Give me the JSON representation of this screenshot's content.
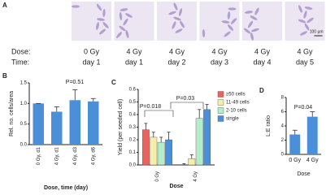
{
  "panel_a": {
    "label": "A",
    "dose_label": "Dose:",
    "time_label": "Time:",
    "images": [
      {
        "dose": "0 Gy",
        "time": "day 1"
      },
      {
        "dose": "4 Gy",
        "time": "day 1"
      },
      {
        "dose": "4 Gy",
        "time": "day 2"
      },
      {
        "dose": "4 Gy",
        "time": "day 3"
      },
      {
        "dose": "4 Gy",
        "time": "day 4"
      },
      {
        "dose": "4 Gy",
        "time": "day 5"
      }
    ],
    "scale_bar": "100 µm"
  },
  "chart_data": [
    {
      "type": "bar",
      "label": "B",
      "y_label": "Rel. no. cells/area",
      "x_label": "Dose, time (day)",
      "categories": [
        "0 Gy, d1",
        "4 Gy, d1",
        "4 Gy, d3",
        "4 Gy, d6"
      ],
      "values": [
        1.0,
        0.8,
        1.08,
        1.05
      ],
      "errors": [
        0,
        0.12,
        0.25,
        0.07
      ],
      "color": "#4a8fd8",
      "ylim": [
        0,
        1.5
      ],
      "yticks": [
        {
          "value": 0,
          "label": "0.0"
        },
        {
          "value": 0.5,
          "label": "0.5"
        },
        {
          "value": 1,
          "label": "1.0"
        },
        {
          "value": 1.5,
          "label": "1.5"
        }
      ],
      "annotations": [
        "P=0.51"
      ]
    },
    {
      "type": "bar",
      "label": "C",
      "y_label": "Yield (per seeded cell)",
      "x_label": "Dose",
      "categories": [
        "0 Gy",
        "4 Gy"
      ],
      "series": [
        {
          "name": "≥50 cells",
          "color": "#e8645f",
          "values": [
            0.28,
            0.0
          ],
          "errors": [
            0.05,
            0.01
          ]
        },
        {
          "name": "11-49 cells",
          "color": "#f3efaa",
          "values": [
            0.22,
            0.05
          ],
          "errors": [
            0.04,
            0.03
          ]
        },
        {
          "name": "2-10 cells",
          "color": "#b5ecc9",
          "values": [
            0.18,
            0.37
          ],
          "errors": [
            0.04,
            0.07
          ]
        },
        {
          "name": "single",
          "color": "#4a8fd8",
          "values": [
            0.2,
            0.44
          ],
          "errors": [
            0.06,
            0.04
          ]
        }
      ],
      "ylim": [
        0,
        0.6
      ],
      "yticks": [
        {
          "value": 0,
          "label": "0.0"
        },
        {
          "value": 0.1,
          "label": "0.1"
        },
        {
          "value": 0.2,
          "label": "0.2"
        },
        {
          "value": 0.3,
          "label": "0.3"
        },
        {
          "value": 0.4,
          "label": "0.4"
        },
        {
          "value": 0.5,
          "label": "0.5"
        },
        {
          "value": 0.6,
          "label": "0.6"
        }
      ],
      "annotations": [
        "P=0.018",
        "P=0.03"
      ]
    },
    {
      "type": "bar",
      "label": "D",
      "y_label": "L:E ratio",
      "x_label": "Dose",
      "categories": [
        "0 Gy",
        "4 Gy"
      ],
      "values": [
        2.8,
        5.3
      ],
      "errors": [
        0.6,
        0.7
      ],
      "color": "#4a8fd8",
      "ylim": [
        0,
        8
      ],
      "yticks": [
        0,
        2,
        4,
        6,
        8
      ],
      "annotations": [
        "P=0.04"
      ]
    }
  ]
}
